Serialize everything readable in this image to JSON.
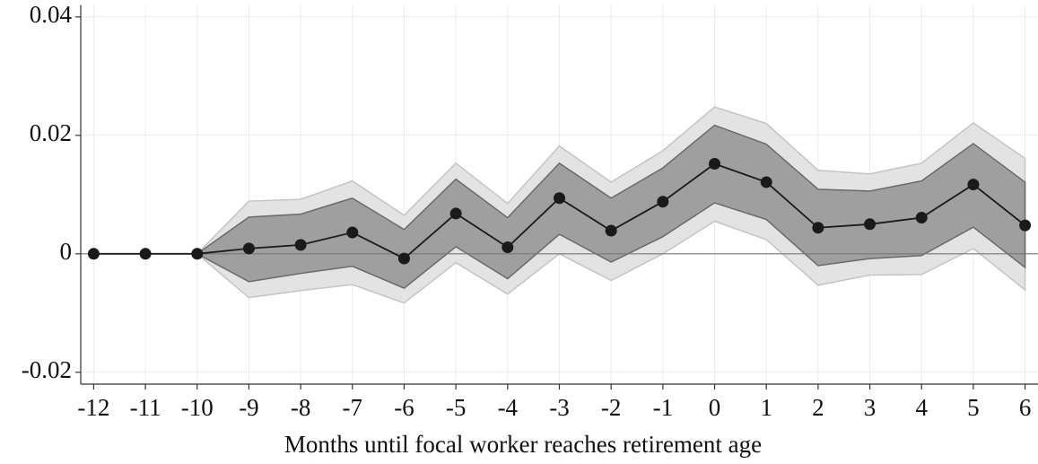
{
  "chart_data": {
    "type": "line",
    "xlabel": "Months until focal worker reaches retirement age",
    "x": [
      -12,
      -11,
      -10,
      -9,
      -8,
      -7,
      -6,
      -5,
      -4,
      -3,
      -2,
      -1,
      0,
      1,
      2,
      3,
      4,
      5,
      6
    ],
    "series": [
      {
        "color": "#1a1a1a",
        "values": [
          0,
          0,
          0,
          0.0009,
          0.0015,
          0.0036,
          -0.0008,
          0.0068,
          0.0011,
          0.0094,
          0.0039,
          0.0088,
          0.0152,
          0.0121,
          0.0044,
          0.005,
          0.0061,
          0.0117,
          0.0048
        ]
      }
    ],
    "bands": [
      {
        "color": "#e3e3e3",
        "edge": "#c4c4c4",
        "upper": [
          null,
          null,
          0,
          0.0089,
          0.0092,
          0.0123,
          0.0065,
          0.0153,
          0.0085,
          0.0182,
          0.0121,
          0.0174,
          0.0248,
          0.022,
          0.0141,
          0.0135,
          0.0153,
          0.0221,
          0.0161
        ],
        "lower": [
          null,
          null,
          0,
          -0.0074,
          -0.0062,
          -0.0052,
          -0.0083,
          -0.0015,
          -0.0068,
          0,
          -0.0045,
          0,
          0.0055,
          0.0024,
          -0.0053,
          -0.0036,
          -0.0035,
          0.0009,
          -0.0061
        ]
      },
      {
        "color": "#9f9f9f",
        "edge": "#6a6a6a",
        "upper": [
          null,
          null,
          0,
          0.0062,
          0.0067,
          0.0094,
          0.0041,
          0.0126,
          0.0061,
          0.0153,
          0.0094,
          0.0145,
          0.0217,
          0.0185,
          0.0109,
          0.0106,
          0.0123,
          0.0186,
          0.0121
        ],
        "lower": [
          null,
          null,
          0,
          -0.0047,
          -0.0033,
          -0.0021,
          -0.0058,
          0.0012,
          -0.0042,
          0.0033,
          -0.0014,
          0.0029,
          0.0086,
          0.0058,
          -0.002,
          -0.0008,
          -0.0003,
          0.0045,
          -0.0023
        ]
      }
    ],
    "xlim": [
      -12.25,
      6.25
    ],
    "ylim": [
      -0.022,
      0.042
    ],
    "xticks": [
      -12,
      -11,
      -10,
      -9,
      -8,
      -7,
      -6,
      -5,
      -4,
      -3,
      -2,
      -1,
      0,
      1,
      2,
      3,
      4,
      5,
      6
    ],
    "yticks": [
      -0.02,
      0,
      0.02,
      0.04
    ],
    "grid": true
  }
}
